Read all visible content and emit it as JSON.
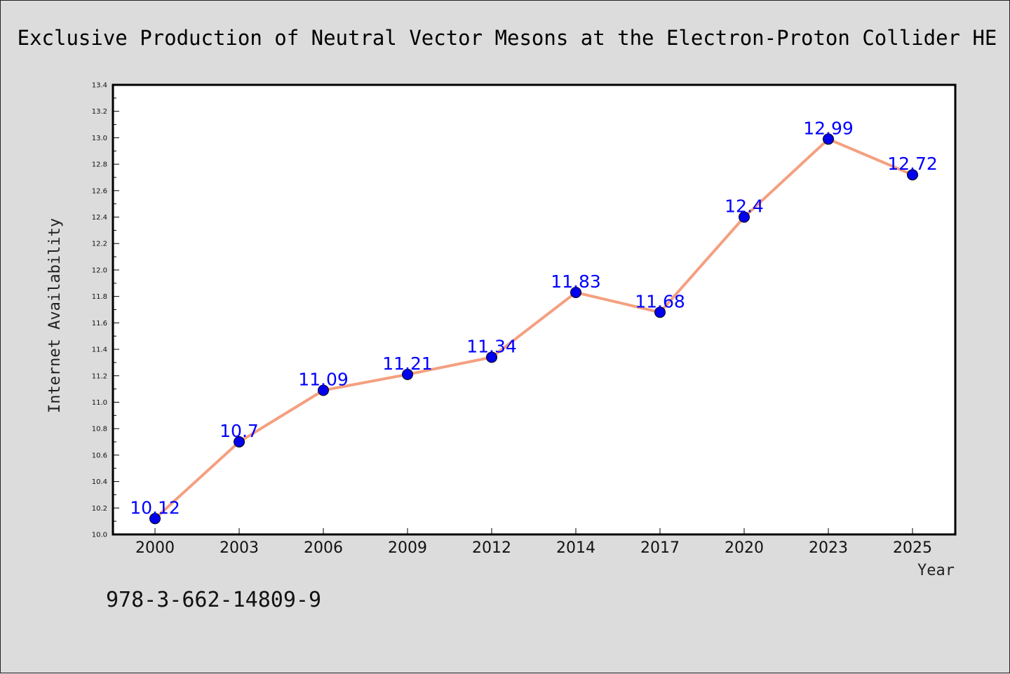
{
  "chart_data": {
    "type": "line",
    "title": "Exclusive Production of Neutral Vector Mesons at the Electron-Proton Collider HE",
    "xlabel": "Year",
    "ylabel": "Internet Availability",
    "categories": [
      "2000",
      "2003",
      "2006",
      "2009",
      "2012",
      "2014",
      "2017",
      "2020",
      "2023",
      "2025"
    ],
    "series": [
      {
        "values": [
          10.12,
          10.7,
          11.09,
          11.21,
          11.34,
          11.83,
          11.68,
          12.4,
          12.99,
          12.72
        ],
        "data_labels": [
          "10.12",
          "10.7",
          "11.09",
          "11.21",
          "11.34",
          "11.83",
          "11.68",
          "12.4",
          "12.99",
          "12.72"
        ],
        "line_color": "#f4a080",
        "marker_color": "#0000ee"
      }
    ],
    "ylim": [
      10.0,
      13.4
    ],
    "yticks": [
      "10.0",
      "10.2",
      "10.4",
      "10.6",
      "10.8",
      "11.0",
      "11.2",
      "11.4",
      "11.6",
      "11.8",
      "12.0",
      "12.2",
      "12.4",
      "12.6",
      "12.8",
      "13.0",
      "13.2",
      "13.4"
    ],
    "grid": false,
    "legend": "none"
  },
  "footer": {
    "isbn": "978-3-662-14809-9"
  },
  "colors": {
    "background": "#dcdcdc",
    "plot_background": "#ffffff",
    "label_color": "#0000ff"
  }
}
